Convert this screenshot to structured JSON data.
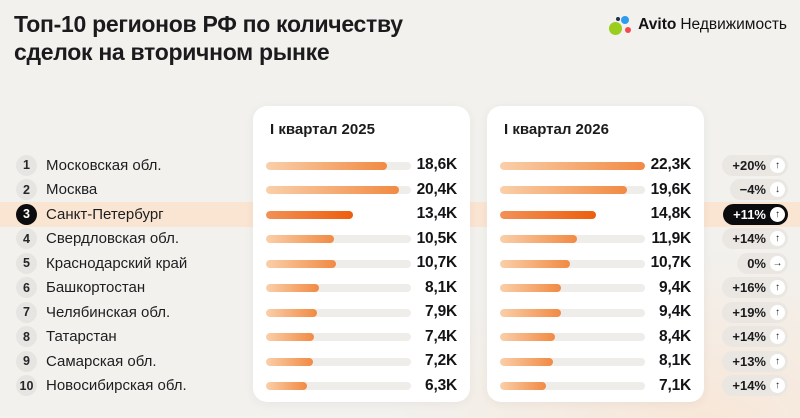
{
  "header": {
    "title_lines": [
      "Топ-10 регионов РФ по количеству",
      "сделок на вторичном рынке"
    ],
    "logo": {
      "brand": "Avito",
      "product": "Недвижимость"
    }
  },
  "columns": [
    {
      "header": "I квартал 2025"
    },
    {
      "header": "I квартал 2026"
    }
  ],
  "chart_data": {
    "type": "bar",
    "orientation": "horizontal",
    "title": "Топ-10 регионов РФ по количеству сделок на вторичном рынке",
    "categories": [
      "Московская обл.",
      "Москва",
      "Санкт-Петербург",
      "Свердловская обл.",
      "Краснодарский край",
      "Башкортостан",
      "Челябинская обл.",
      "Татарстан",
      "Самарская обл.",
      "Новосибирская обл."
    ],
    "ranks": [
      "1",
      "2",
      "3",
      "4",
      "5",
      "6",
      "7",
      "8",
      "9",
      "10"
    ],
    "series": [
      {
        "name": "I квартал 2025",
        "values": [
          18.6,
          20.4,
          13.4,
          10.5,
          10.7,
          8.1,
          7.9,
          7.4,
          7.2,
          6.3
        ],
        "value_labels": [
          "18,6K",
          "20,4K",
          "13,4K",
          "10,5K",
          "10,7K",
          "8,1K",
          "7,9K",
          "7,4K",
          "7,2K",
          "6,3K"
        ]
      },
      {
        "name": "I квартал 2026",
        "values": [
          22.3,
          19.6,
          14.8,
          11.9,
          10.7,
          9.4,
          9.4,
          8.4,
          8.1,
          7.1
        ],
        "value_labels": [
          "22,3K",
          "19,6K",
          "14,8K",
          "11,9K",
          "10,7K",
          "9,4K",
          "9,4K",
          "8,4K",
          "8,1K",
          "7,1K"
        ]
      }
    ],
    "changes": [
      {
        "label": "+20%",
        "dir": "up"
      },
      {
        "label": "−4%",
        "dir": "down"
      },
      {
        "label": "+11%",
        "dir": "up"
      },
      {
        "label": "+14%",
        "dir": "up"
      },
      {
        "label": "0%",
        "dir": "right"
      },
      {
        "label": "+16%",
        "dir": "up"
      },
      {
        "label": "+19%",
        "dir": "up"
      },
      {
        "label": "+14%",
        "dir": "up"
      },
      {
        "label": "+13%",
        "dir": "up"
      },
      {
        "label": "+14%",
        "dir": "up"
      }
    ],
    "arrow_glyphs": {
      "up": "↑",
      "down": "↓",
      "right": "→"
    },
    "highlight_index": 2,
    "bar_scale_max": 22.3,
    "unit": "K",
    "colors": {
      "bar_gradient": [
        "#FACFA9",
        "#F18A43"
      ],
      "bar_gradient_highlight": [
        "#F29157",
        "#ED5E0E"
      ],
      "highlight_band": "#FAE5D2",
      "accent_orange": "#ED5E0E",
      "card_background": "#FFFFFF",
      "page_background": "#F2F1EE"
    }
  }
}
